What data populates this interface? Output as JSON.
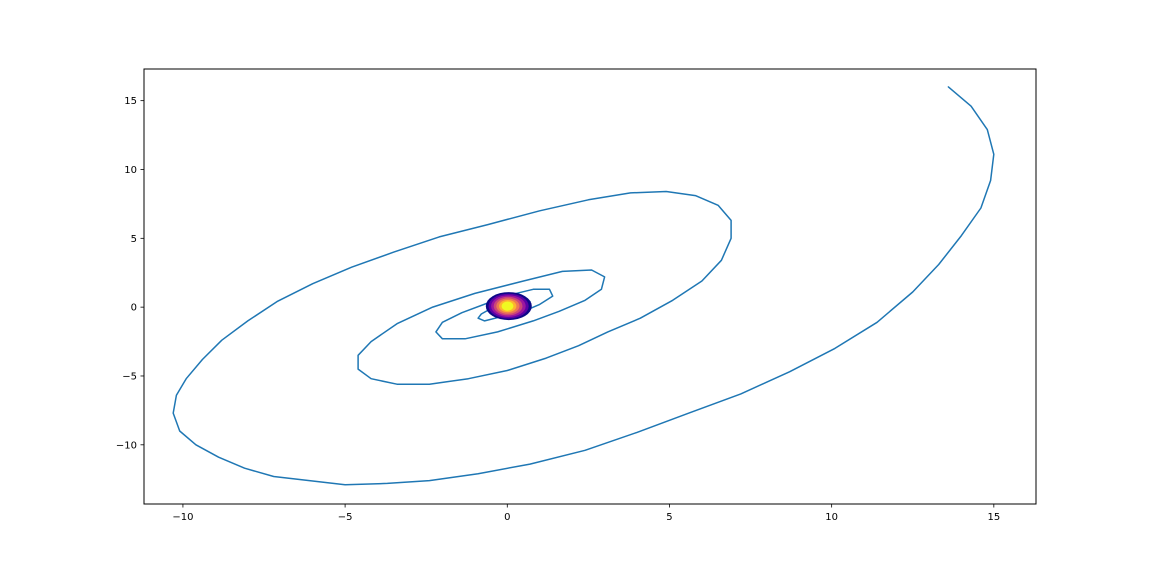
{
  "chart_data": {
    "type": "line",
    "title": "",
    "xlabel": "",
    "ylabel": "",
    "xlim": [
      -11.2,
      16.3
    ],
    "ylim": [
      -14.3,
      17.3
    ],
    "grid": false,
    "legend": "none",
    "x_ticks": [
      {
        "value": -10,
        "label": "−10"
      },
      {
        "value": -5,
        "label": "−5"
      },
      {
        "value": 0,
        "label": "0"
      },
      {
        "value": 5,
        "label": "5"
      },
      {
        "value": 10,
        "label": "10"
      },
      {
        "value": 15,
        "label": "15"
      }
    ],
    "y_ticks": [
      {
        "value": -10,
        "label": "−10"
      },
      {
        "value": -5,
        "label": "−5"
      },
      {
        "value": 0,
        "label": "0"
      },
      {
        "value": 5,
        "label": "5"
      },
      {
        "value": 10,
        "label": "10"
      },
      {
        "value": 15,
        "label": "15"
      }
    ],
    "series": [
      {
        "color": "#1f77b4",
        "points": [
          [
            13.6,
            16.0
          ],
          [
            14.3,
            14.6
          ],
          [
            14.8,
            12.9
          ],
          [
            15.0,
            11.1
          ],
          [
            14.9,
            9.2
          ],
          [
            14.6,
            7.2
          ],
          [
            14.0,
            5.2
          ],
          [
            13.3,
            3.1
          ],
          [
            12.5,
            1.1
          ],
          [
            11.4,
            -1.1
          ],
          [
            10.1,
            -3.0
          ],
          [
            8.7,
            -4.7
          ],
          [
            7.2,
            -6.3
          ],
          [
            5.6,
            -7.7
          ],
          [
            4.0,
            -9.1
          ],
          [
            2.4,
            -10.4
          ],
          [
            0.7,
            -11.4
          ],
          [
            -0.9,
            -12.1
          ],
          [
            -2.4,
            -12.6
          ],
          [
            -3.7,
            -12.8
          ],
          [
            -5.0,
            -12.9
          ],
          [
            -6.1,
            -12.6
          ],
          [
            -7.2,
            -12.3
          ],
          [
            -8.1,
            -11.7
          ],
          [
            -8.9,
            -10.9
          ],
          [
            -9.6,
            -10.0
          ],
          [
            -10.1,
            -9.0
          ],
          [
            -10.3,
            -7.7
          ],
          [
            -10.2,
            -6.4
          ],
          [
            -9.9,
            -5.2
          ],
          [
            -9.4,
            -3.8
          ],
          [
            -8.8,
            -2.4
          ],
          [
            -8.0,
            -1.0
          ],
          [
            -7.1,
            0.4
          ],
          [
            -6.0,
            1.7
          ],
          [
            -4.8,
            2.9
          ],
          [
            -3.5,
            4.0
          ],
          [
            -2.1,
            5.1
          ],
          [
            -0.6,
            6.0
          ],
          [
            1.0,
            7.0
          ],
          [
            2.5,
            7.8
          ],
          [
            3.8,
            8.3
          ],
          [
            4.9,
            8.4
          ],
          [
            5.8,
            8.1
          ],
          [
            6.5,
            7.4
          ],
          [
            6.9,
            6.3
          ],
          [
            6.9,
            5.0
          ],
          [
            6.6,
            3.4
          ],
          [
            6.0,
            1.9
          ],
          [
            5.1,
            0.5
          ],
          [
            4.1,
            -0.8
          ],
          [
            3.1,
            -1.8
          ],
          [
            2.2,
            -2.8
          ],
          [
            1.2,
            -3.7
          ],
          [
            0.0,
            -4.6
          ],
          [
            -1.2,
            -5.2
          ],
          [
            -2.4,
            -5.6
          ],
          [
            -3.4,
            -5.6
          ],
          [
            -4.2,
            -5.2
          ],
          [
            -4.6,
            -4.5
          ],
          [
            -4.6,
            -3.5
          ],
          [
            -4.2,
            -2.5
          ],
          [
            -3.4,
            -1.2
          ],
          [
            -2.3,
            0.0
          ],
          [
            -1.0,
            1.0
          ],
          [
            0.5,
            1.9
          ],
          [
            1.7,
            2.6
          ],
          [
            2.6,
            2.7
          ],
          [
            3.0,
            2.2
          ],
          [
            2.9,
            1.3
          ],
          [
            2.4,
            0.5
          ],
          [
            1.6,
            -0.3
          ],
          [
            0.8,
            -1.0
          ],
          [
            -0.3,
            -1.8
          ],
          [
            -1.3,
            -2.3
          ],
          [
            -2.0,
            -2.3
          ],
          [
            -2.2,
            -1.8
          ],
          [
            -2.0,
            -1.1
          ],
          [
            -1.4,
            -0.4
          ],
          [
            -0.6,
            0.3
          ],
          [
            0.1,
            0.9
          ],
          [
            0.8,
            1.3
          ],
          [
            1.3,
            1.3
          ],
          [
            1.4,
            0.8
          ],
          [
            1.0,
            0.2
          ],
          [
            0.5,
            -0.3
          ],
          [
            -0.2,
            -0.7
          ],
          [
            -0.7,
            -1.0
          ],
          [
            -0.9,
            -0.8
          ],
          [
            -0.8,
            -0.5
          ],
          [
            -0.5,
            -0.1
          ],
          [
            -0.1,
            0.3
          ],
          [
            0.4,
            0.5
          ],
          [
            0.7,
            0.4
          ],
          [
            0.6,
            0.1
          ],
          [
            0.3,
            -0.1
          ],
          [
            0.0,
            -0.2
          ]
        ]
      }
    ],
    "center_blob": {
      "center": [
        0.0,
        0.0
      ],
      "colors": [
        "#0d0887",
        "#5c01a6",
        "#9c179e",
        "#cc4778",
        "#ed7953",
        "#fdb42f",
        "#f0f921"
      ]
    }
  }
}
